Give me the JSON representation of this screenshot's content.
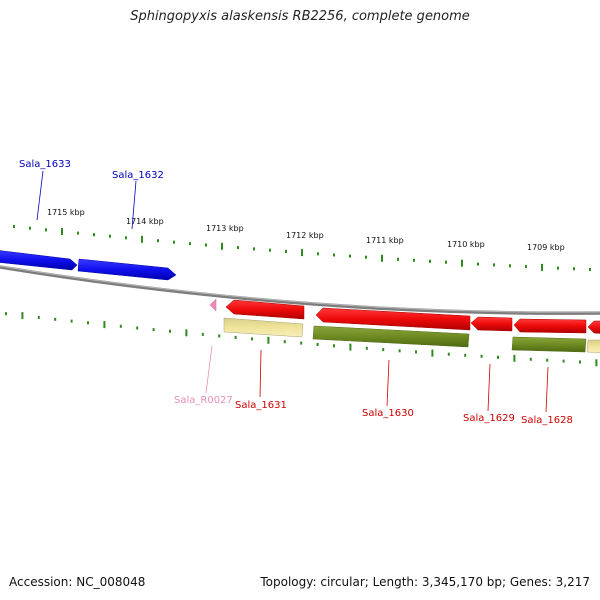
{
  "title": "Sphingopyxis alaskensis RB2256, complete genome",
  "footer": {
    "accession": "Accession: NC_008048",
    "info": "Topology: circular; Length: 3,345,170 bp; Genes: 3,217"
  },
  "colors": {
    "forward_cds": "#1010ee",
    "reverse_cds": "#ee0a0a",
    "trna": "#ee88b8",
    "backbone": "#888888",
    "tick": "#2e8a1e",
    "gene_label_blue": "#0000bb",
    "gene_label_red": "#cc0000",
    "gene_label_pink": "#e88fb6",
    "cog_green": "#6e8a22",
    "cog_yellow": "#f0e49a"
  },
  "tick_labels": [
    "1715 kbp",
    "1714 kbp",
    "1713 kbp",
    "1712 kbp",
    "1711 kbp",
    "1710 kbp",
    "1709 kbp"
  ],
  "genes": [
    {
      "id": "sala1633",
      "label": "Sala_1633",
      "strand": "forward",
      "color": "gene_label_blue"
    },
    {
      "id": "sala1632",
      "label": "Sala_1632",
      "strand": "forward",
      "color": "gene_label_blue"
    },
    {
      "id": "salaR0027",
      "label": "Sala_R0027",
      "strand": "reverse",
      "color": "gene_label_pink"
    },
    {
      "id": "sala1631",
      "label": "Sala_1631",
      "strand": "reverse",
      "color": "gene_label_red"
    },
    {
      "id": "sala1630",
      "label": "Sala_1630",
      "strand": "reverse",
      "color": "gene_label_red"
    },
    {
      "id": "sala1629",
      "label": "Sala_1629",
      "strand": "reverse",
      "color": "gene_label_red"
    },
    {
      "id": "sala1628",
      "label": "Sala_1628",
      "strand": "reverse",
      "color": "gene_label_red"
    }
  ]
}
